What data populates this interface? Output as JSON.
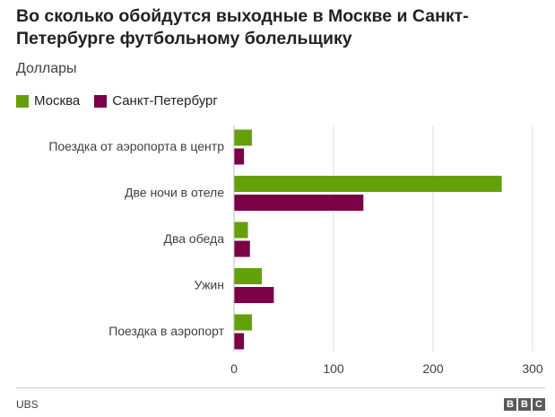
{
  "header": {
    "title": "Во сколько обойдутся выходные в Москве и Санкт-Петербурге футбольному болельщику",
    "subtitle": "Доллары"
  },
  "footer": {
    "source": "UBS",
    "logo": [
      "B",
      "B",
      "C"
    ]
  },
  "chart_data": {
    "type": "bar",
    "orientation": "horizontal",
    "ylabel": "Доллары",
    "categories": [
      "Поездка от аэропорта в центр",
      "Две ночи в отеле",
      "Два обеда",
      "Ужин",
      "Поездка в аэропорт"
    ],
    "series": [
      {
        "name": "Москва",
        "color": "#64a00a",
        "values": [
          18,
          269,
          14,
          28,
          18
        ]
      },
      {
        "name": "Санкт-Петербург",
        "color": "#7b0046",
        "values": [
          10,
          130,
          16,
          40,
          10
        ]
      }
    ],
    "xlim": [
      0,
      300
    ],
    "xticks": [
      0,
      100,
      200,
      300
    ],
    "grid": true,
    "legend_position": "top-left"
  }
}
